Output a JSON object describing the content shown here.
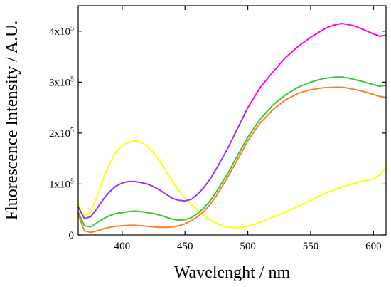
{
  "chart_data": {
    "type": "line",
    "title": "",
    "xlabel": "Wavelenght / nm",
    "ylabel": "Fluorescence Intensity / A.U.",
    "xlim": [
      365,
      610
    ],
    "ylim": [
      0,
      450000
    ],
    "grid": false,
    "legend": "none",
    "x_ticks": [
      {
        "value": 400,
        "label": "400"
      },
      {
        "value": 450,
        "label": "450"
      },
      {
        "value": 500,
        "label": "500"
      },
      {
        "value": 550,
        "label": "550"
      },
      {
        "value": 600,
        "label": "600"
      }
    ],
    "y_ticks": [
      {
        "value": 0,
        "mantissa": "0",
        "exp": ""
      },
      {
        "value": 100000,
        "mantissa": "1x10",
        "exp": "5"
      },
      {
        "value": 200000,
        "mantissa": "2x10",
        "exp": "5"
      },
      {
        "value": 300000,
        "mantissa": "3x10",
        "exp": "5"
      },
      {
        "value": 400000,
        "mantissa": "4x10",
        "exp": "5"
      }
    ],
    "series": [
      {
        "color": "#ffff00",
        "x": [
          365,
          370,
          375,
          380,
          385,
          390,
          395,
          400,
          405,
          410,
          415,
          420,
          425,
          430,
          435,
          440,
          445,
          450,
          455,
          460,
          465,
          470,
          475,
          480,
          485,
          490,
          495,
          500,
          510,
          520,
          530,
          540,
          550,
          560,
          570,
          580,
          590,
          600,
          605,
          610
        ],
        "y": [
          60000,
          38000,
          45000,
          75000,
          110000,
          140000,
          163000,
          175000,
          182000,
          185000,
          182000,
          175000,
          162000,
          145000,
          125000,
          105000,
          88000,
          72000,
          60000,
          48000,
          38000,
          30000,
          23000,
          18000,
          15000,
          14000,
          15000,
          17000,
          25000,
          35000,
          45000,
          56000,
          68000,
          80000,
          90000,
          98000,
          105000,
          110000,
          118000,
          132000
        ]
      },
      {
        "color": "#9933ff",
        "x": [
          365,
          370,
          375,
          380,
          385,
          390,
          395,
          400,
          405,
          410,
          415,
          420,
          425,
          430,
          435,
          440,
          445,
          450,
          455,
          460,
          465,
          470,
          475,
          480,
          485,
          490,
          495,
          500
        ],
        "y": [
          55000,
          32000,
          36000,
          52000,
          70000,
          85000,
          96000,
          102000,
          105000,
          105000,
          103000,
          100000,
          95000,
          88000,
          80000,
          72000,
          68000,
          67000,
          70000,
          80000,
          93000,
          110000,
          130000,
          152000,
          175000,
          200000,
          225000,
          250000
        ]
      },
      {
        "color": "#ff00ff",
        "x": [
          500,
          510,
          520,
          530,
          540,
          550,
          560,
          565,
          570,
          575,
          580,
          585,
          590,
          595,
          600,
          605,
          610
        ],
        "y": [
          250000,
          290000,
          320000,
          348000,
          370000,
          388000,
          403000,
          409000,
          413000,
          415000,
          413000,
          410000,
          405000,
          400000,
          395000,
          390000,
          392000
        ]
      },
      {
        "color": "#33cc33",
        "x": [
          365,
          370,
          375,
          380,
          385,
          390,
          395,
          400,
          405,
          410,
          415,
          420,
          425,
          430,
          435,
          440,
          445,
          450,
          455,
          460,
          465,
          470,
          475,
          480,
          485,
          490,
          495,
          500,
          510,
          520,
          530,
          540,
          550,
          560,
          570,
          575,
          580,
          590,
          600,
          605,
          610
        ],
        "y": [
          45000,
          18000,
          16000,
          24000,
          32000,
          38000,
          42000,
          44000,
          46000,
          47000,
          46000,
          44000,
          42000,
          39000,
          35000,
          31000,
          29000,
          30000,
          34000,
          42000,
          53000,
          67000,
          85000,
          105000,
          125000,
          148000,
          170000,
          192000,
          228000,
          255000,
          275000,
          290000,
          300000,
          307000,
          310000,
          310000,
          308000,
          302000,
          295000,
          292000,
          294000
        ]
      },
      {
        "color": "#ff7f27",
        "x": [
          365,
          370,
          375,
          380,
          385,
          390,
          395,
          400,
          405,
          410,
          415,
          420,
          425,
          430,
          435,
          440,
          445,
          450,
          455,
          460,
          465,
          470,
          475,
          480,
          485,
          490,
          495,
          500,
          510,
          520,
          530,
          540,
          550,
          560,
          570,
          575,
          580,
          590,
          600,
          605,
          610
        ],
        "y": [
          40000,
          8000,
          5000,
          8000,
          12000,
          15000,
          17000,
          18000,
          19000,
          19000,
          18000,
          17000,
          16000,
          15000,
          15000,
          16000,
          18000,
          22000,
          28000,
          36000,
          46000,
          60000,
          77000,
          97000,
          118000,
          140000,
          162000,
          185000,
          220000,
          246000,
          265000,
          278000,
          285000,
          289000,
          290000,
          290000,
          288000,
          283000,
          276000,
          272000,
          270000
        ]
      }
    ]
  }
}
